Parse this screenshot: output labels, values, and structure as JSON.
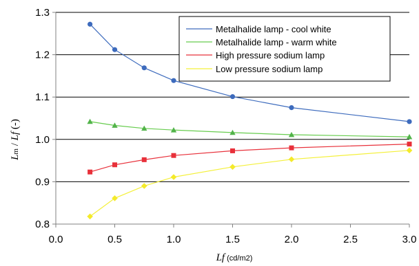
{
  "colors": {
    "background": "#ffffff",
    "axis": "#808080",
    "grid": "#000000",
    "text": "#000000",
    "legend_border": "#000000",
    "series": [
      "#3d6bbd",
      "#66cc4d",
      "#e8303a",
      "#f4f039"
    ],
    "marker_fill": [
      "#3d6bbd",
      "#52b34a",
      "#e8303a",
      "#f4ea2a"
    ]
  },
  "chart_data": {
    "type": "line",
    "title": "",
    "xlabel": "Lf (cd/m2)",
    "xlabel_main": "L",
    "xlabel_italic": "f",
    "xlabel_unit": " (cd/m2)",
    "ylabel": "Lm / Lf (-)",
    "ylabel_main": "L",
    "ylabel_sub1": "m",
    "ylabel_mid": " / ",
    "ylabel_italic2": "Lf",
    "ylabel_unit": " (-)",
    "xlim": [
      0.0,
      3.0
    ],
    "ylim": [
      0.8,
      1.3
    ],
    "xticks": [
      "0.0",
      "0.5",
      "1.0",
      "1.5",
      "2.0",
      "2.5",
      "3.0"
    ],
    "yticks": [
      "0.8",
      "0.9",
      "1.0",
      "1.1",
      "1.2",
      "1.3"
    ],
    "grid": "horizontal major lines",
    "legend_position": "top-right",
    "x": [
      0.29,
      0.5,
      0.75,
      1.0,
      1.5,
      2.0,
      3.0
    ],
    "series": [
      {
        "name": "Metalhalide lamp - cool white",
        "marker": "circle",
        "values": [
          1.272,
          1.212,
          1.169,
          1.139,
          1.101,
          1.075,
          1.042
        ]
      },
      {
        "name": "Metalhalide lamp - warm white",
        "marker": "triangle",
        "values": [
          1.042,
          1.033,
          1.026,
          1.022,
          1.016,
          1.011,
          1.006
        ]
      },
      {
        "name": "High pressure sodium lamp",
        "marker": "square",
        "values": [
          0.923,
          0.94,
          0.952,
          0.962,
          0.973,
          0.98,
          0.989
        ]
      },
      {
        "name": "Low pressure sodium lamp",
        "marker": "diamond",
        "values": [
          0.818,
          0.861,
          0.89,
          0.911,
          0.935,
          0.953,
          0.974
        ]
      }
    ]
  }
}
